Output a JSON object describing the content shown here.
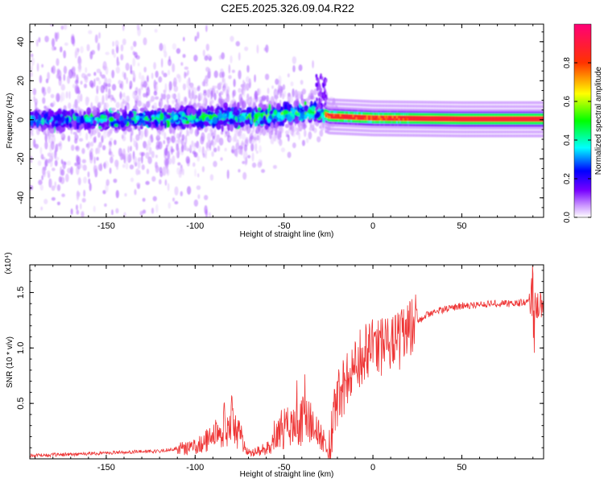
{
  "title": "C2E5.2025.326.09.04.R22",
  "colorbar": {
    "label": "Normalized spectral amplitude",
    "ticks": [
      "0.0",
      "0.2",
      "0.4",
      "0.6",
      "0.8"
    ],
    "tick_values": [
      0,
      0.2,
      0.4,
      0.6,
      0.8
    ]
  },
  "chart_data": [
    {
      "type": "heatmap",
      "name": "spectrogram",
      "xlabel": "Height of straight line (km)",
      "ylabel": "Frequency (Hz)",
      "xlim": [
        -193,
        96
      ],
      "ylim": [
        -50,
        49
      ],
      "xticks": [
        -150,
        -100,
        -50,
        0,
        50
      ],
      "xtick_labels": [
        "-150",
        "-100",
        "-50",
        "0",
        "50"
      ],
      "yticks": [
        -40,
        -20,
        0,
        20,
        40
      ],
      "ytick_labels": [
        "-40",
        "-20",
        "0",
        "20",
        "40"
      ],
      "value_range": [
        0,
        1
      ],
      "description_points": [
        {
          "x": -190,
          "f": 0,
          "amp": 0.35
        },
        {
          "x": -150,
          "f": 0,
          "amp": 0.35
        },
        {
          "x": -100,
          "f": 1,
          "amp": 0.45
        },
        {
          "x": -60,
          "f": 2,
          "amp": 0.5
        },
        {
          "x": -30,
          "f": 4,
          "amp": 0.55
        },
        {
          "x": -25,
          "f": 2,
          "amp": 0.85
        },
        {
          "x": 0,
          "f": 1,
          "amp": 0.9
        },
        {
          "x": 50,
          "f": 0.5,
          "amp": 0.95
        },
        {
          "x": 95,
          "f": 0.5,
          "amp": 0.95
        }
      ]
    },
    {
      "type": "line",
      "name": "snr",
      "xlabel": "Height of straight line (km)",
      "ylabel": "SNR (10 * v/v)",
      "y_multiplier": "(x10⁴)",
      "xlim": [
        -193,
        96
      ],
      "ylim": [
        0,
        1.75
      ],
      "xticks": [
        -150,
        -100,
        -50,
        0,
        50
      ],
      "xtick_labels": [
        "-150",
        "-100",
        "-50",
        "0",
        "50"
      ],
      "yticks": [
        0.5,
        1.0,
        1.5
      ],
      "ytick_labels": [
        "0.5",
        "1.0",
        "1.5"
      ],
      "color": "#ee3333",
      "series": [
        {
          "name": "SNR",
          "x": [
            -193,
            -170,
            -140,
            -120,
            -100,
            -90,
            -80,
            -70,
            -60,
            -50,
            -40,
            -30,
            -25,
            -20,
            -10,
            0,
            10,
            20,
            30,
            40,
            50,
            60,
            70,
            80,
            88,
            90,
            92,
            96
          ],
          "y": [
            0.03,
            0.04,
            0.06,
            0.07,
            0.12,
            0.22,
            0.4,
            0.05,
            0.1,
            0.3,
            0.38,
            0.3,
            0.02,
            0.55,
            0.85,
            1.0,
            1.0,
            1.15,
            1.3,
            1.35,
            1.38,
            1.39,
            1.4,
            1.4,
            1.42,
            1.45,
            1.38,
            1.4
          ]
        }
      ]
    }
  ]
}
